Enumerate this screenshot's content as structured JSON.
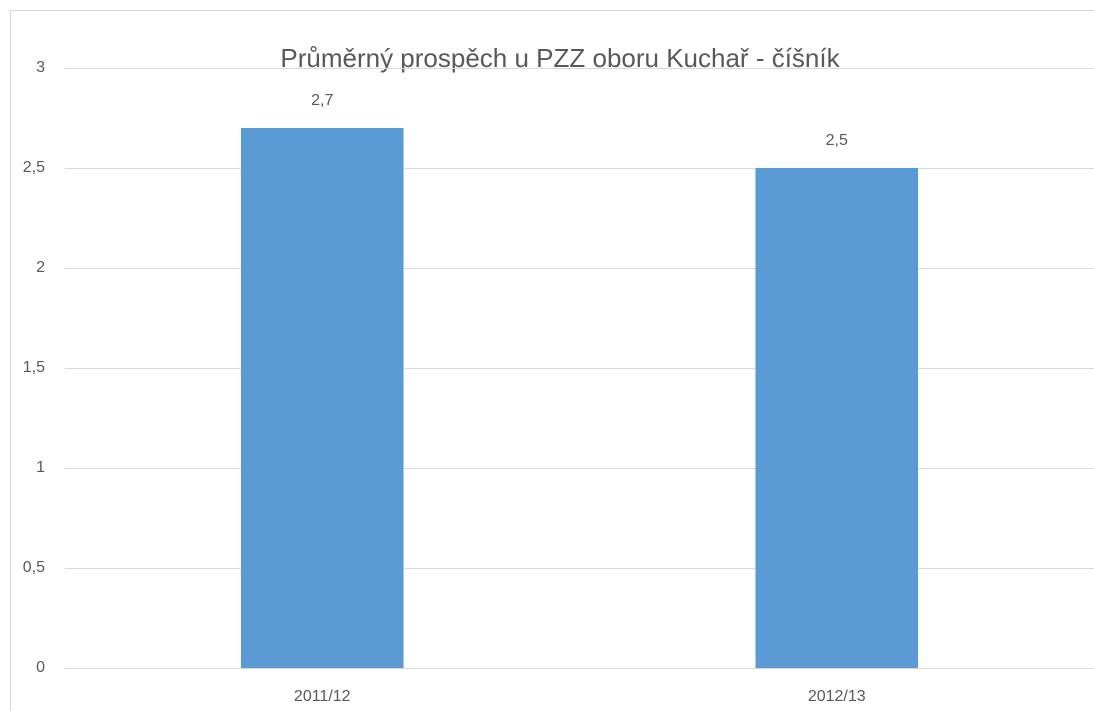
{
  "chart_data": {
    "type": "bar",
    "title": "Průměrný prospěch u PZZ oboru Kuchař - číšník",
    "categories": [
      "2011/12",
      "2012/13"
    ],
    "values": [
      2.7,
      2.5
    ],
    "value_labels": [
      "2,7",
      "2,5"
    ],
    "color": "#5b9bd5",
    "ylim": [
      0,
      3
    ],
    "yticks": [
      0,
      {
        "value": 0.5,
        "label": "0,5"
      },
      1,
      {
        "value": 1.5,
        "label": "1,5"
      },
      2,
      {
        "value": 2.5,
        "label": "2,5"
      },
      3
    ],
    "grid": true
  }
}
